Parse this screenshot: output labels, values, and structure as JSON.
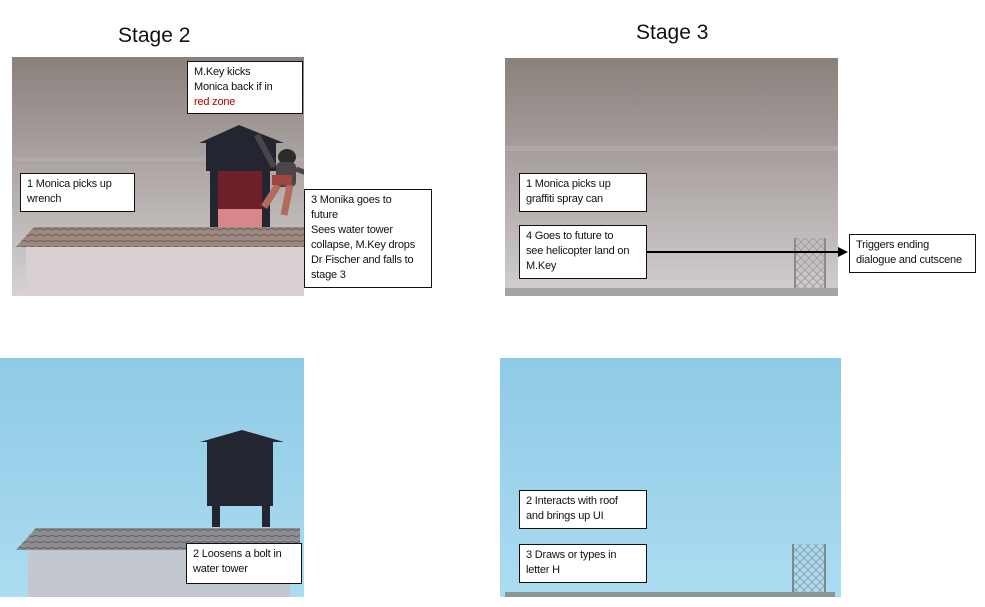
{
  "stages": {
    "stage2_title": "Stage 2",
    "stage3_title": "Stage 3"
  },
  "notes": {
    "mkey_kicks": {
      "line1": "M.Key kicks",
      "line2": "Monica back if in",
      "line3": "red zone"
    },
    "s2_monica_wrench": {
      "line1": "1 Monica picks up",
      "line2": "wrench"
    },
    "s2_future": {
      "line1": "3 Monika goes to",
      "line2": "future",
      "line3": "Sees water tower",
      "line4": "collapse, M.Key drops",
      "line5": "Dr Fischer and falls to",
      "line6": "stage 3"
    },
    "s2_bolt": {
      "line1": "2 Loosens a bolt in",
      "line2": "water tower"
    },
    "s3_spray": {
      "line1": "1 Monica picks up",
      "line2": "graffiti spray can"
    },
    "s3_future": {
      "line1": "4 Goes to future to",
      "line2": "see helicopter land on",
      "line3": "M.Key"
    },
    "s3_ending": {
      "line1": "Triggers ending",
      "line2": "dialogue and cutscene"
    },
    "s3_roof": {
      "line1": "2 Interacts with roof",
      "line2": "and brings up UI"
    },
    "s3_draw": {
      "line1": "3 Draws or types in",
      "line2": "letter H"
    }
  },
  "colors": {
    "future_sky_top": "#8a807c",
    "future_sky_bottom": "#cfcaca",
    "present_sky_top": "#8ecae6",
    "present_sky_bottom": "#a9dbf0",
    "tower": "#232631",
    "red_zone_dark": "#6e1f27",
    "red_zone_light": "#d9868a",
    "roof": "#8c8a88",
    "wall": "#c9c2c2",
    "arrow": "#000000"
  },
  "icons": [
    "water-tower",
    "monica-character",
    "fence",
    "arrow-right"
  ]
}
